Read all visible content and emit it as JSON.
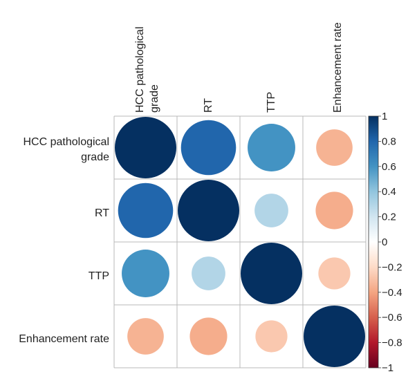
{
  "chart_data": {
    "type": "heatmap",
    "style": "corrplot-circles",
    "variables": [
      [
        "HCC pathological",
        "grade"
      ],
      [
        "RT"
      ],
      [
        "TTP"
      ],
      [
        "Enhancement rate"
      ]
    ],
    "matrix": [
      [
        1.0,
        0.8,
        0.6,
        -0.35
      ],
      [
        0.8,
        1.0,
        0.3,
        -0.37
      ],
      [
        0.6,
        0.3,
        1.0,
        -0.27
      ],
      [
        -0.35,
        -0.37,
        -0.27,
        1.0
      ]
    ],
    "colorbar": {
      "range": [
        -1,
        1
      ],
      "ticks": [
        "1",
        "0.8",
        "0.6",
        "0.4",
        "0.2",
        "0",
        "−0.2",
        "−0.4",
        "−0.6",
        "−0.8",
        "−1"
      ],
      "tick_values": [
        1,
        0.8,
        0.6,
        0.4,
        0.2,
        0,
        -0.2,
        -0.4,
        -0.6,
        -0.8,
        -1
      ],
      "colors": {
        "neg1": "#67001F",
        "neg08": "#B2182B",
        "neg06": "#D6604D",
        "neg04": "#F4A582",
        "neg02": "#FDDBC7",
        "zero": "#FFFFFF",
        "pos02": "#D1E5F0",
        "pos04": "#92C5DE",
        "pos06": "#4393C3",
        "pos08": "#2166AC",
        "pos1": "#053061"
      }
    },
    "grid": true
  }
}
